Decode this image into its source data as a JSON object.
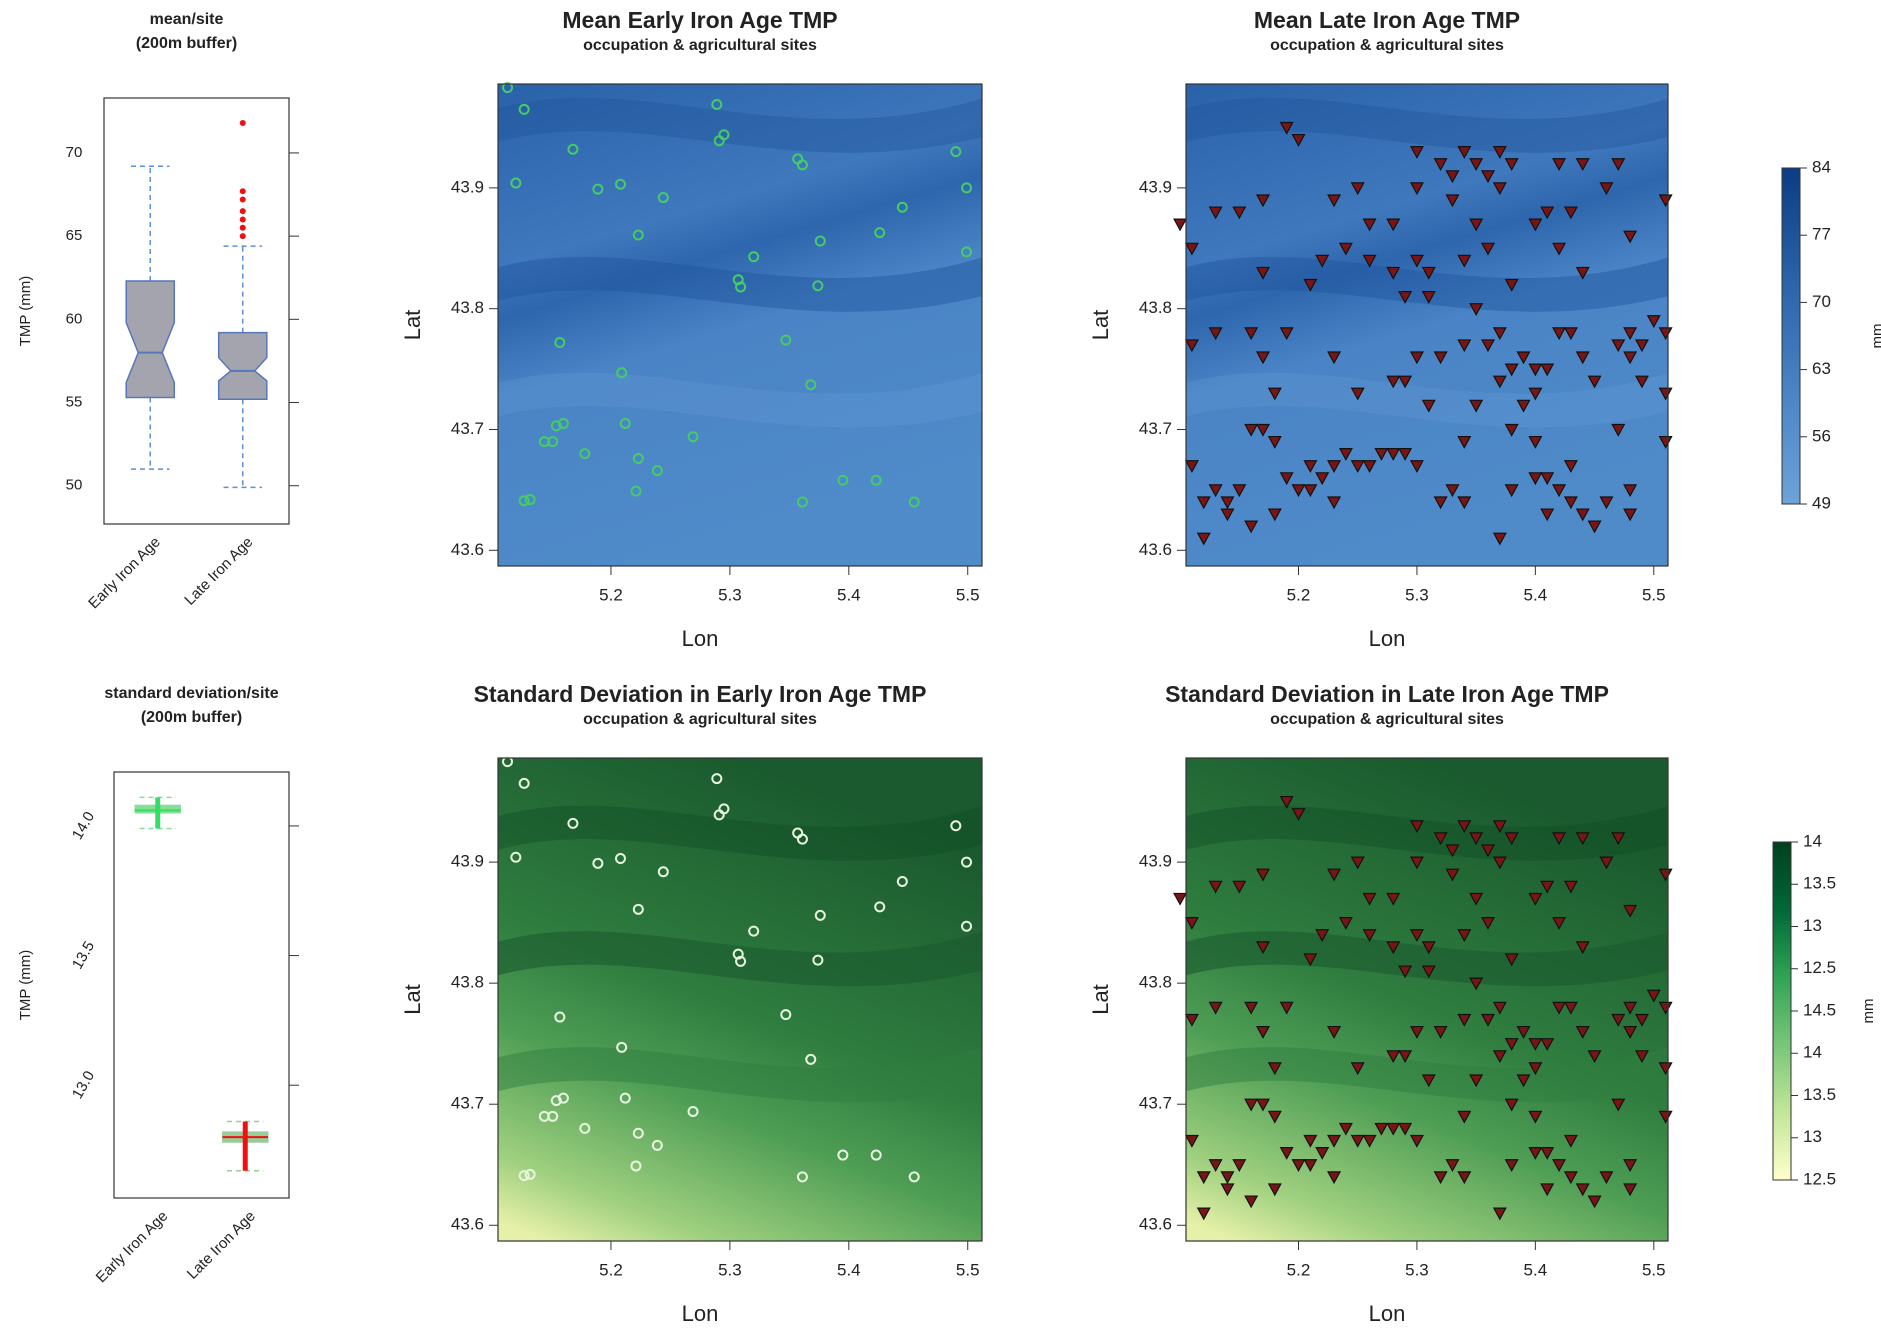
{
  "chart_data": [
    {
      "type": "boxplot",
      "title": "mean/site",
      "subtitle": "(200m buffer)",
      "ylabel": "TMP (mm)",
      "ylim": [
        47.7,
        73.3
      ],
      "yticks": [
        50,
        55,
        60,
        65,
        70
      ],
      "categories": [
        "Early Iron Age",
        "Late Iron Age"
      ],
      "boxes": [
        {
          "fill": "#a4a4ae",
          "edge": "#5577bb",
          "whisker_color": "#5b8fd6",
          "point_color": "#33dd66",
          "whislo": 51,
          "q1": 55.3,
          "med": 58,
          "q3": 62.3,
          "whishi": 69.2,
          "notch": [
            56.2,
            59.8
          ],
          "fliers": []
        },
        {
          "fill": "#a4a4ae",
          "edge": "#5577bb",
          "whisker_color": "#5b8fd6",
          "point_color": "#ee1111",
          "whislo": 49.9,
          "q1": 55.2,
          "med": 56.9,
          "q3": 59.2,
          "whishi": 64.4,
          "notch": [
            56.3,
            57.7
          ],
          "fliers": [
            71.8,
            67.7,
            67.2,
            66.5,
            66.0,
            65.5,
            65.0
          ]
        }
      ]
    },
    {
      "type": "map",
      "title": "Mean Early Iron Age TMP",
      "subtitle": "occupation & agricultural sites",
      "xlabel": "Lon",
      "ylabel": "Lat",
      "xlim": [
        5.105,
        5.512
      ],
      "ylim": [
        43.587,
        43.986
      ],
      "xticks": [
        5.2,
        5.3,
        5.4,
        5.5
      ],
      "yticks": [
        43.6,
        43.7,
        43.8,
        43.9
      ],
      "palette": "blue",
      "series": [
        {
          "marker": "circle",
          "color": "#44cc66",
          "x": [
            5.113,
            5.127,
            5.12,
            5.168,
            5.189,
            5.208,
            5.244,
            5.223,
            5.289,
            5.295,
            5.291,
            5.32,
            5.307,
            5.309,
            5.357,
            5.361,
            5.376,
            5.374,
            5.445,
            5.426,
            5.49,
            5.499,
            5.499,
            5.157,
            5.209,
            5.16,
            5.154,
            5.144,
            5.151,
            5.178,
            5.212,
            5.223,
            5.239,
            5.221,
            5.269,
            5.347,
            5.368,
            5.361,
            5.395,
            5.423,
            5.455,
            5.127,
            5.132
          ],
          "y": [
            43.983,
            43.965,
            43.904,
            43.932,
            43.899,
            43.903,
            43.892,
            43.861,
            43.969,
            43.944,
            43.939,
            43.843,
            43.824,
            43.818,
            43.924,
            43.919,
            43.856,
            43.819,
            43.884,
            43.863,
            43.93,
            43.9,
            43.847,
            43.772,
            43.747,
            43.705,
            43.703,
            43.69,
            43.69,
            43.68,
            43.705,
            43.676,
            43.666,
            43.649,
            43.694,
            43.774,
            43.737,
            43.64,
            43.658,
            43.658,
            43.64,
            43.641,
            43.642
          ]
        }
      ]
    },
    {
      "type": "map",
      "title": "Mean Late Iron Age TMP",
      "subtitle": "occupation & agricultural sites",
      "xlabel": "Lon",
      "ylabel": "Lat",
      "xlim": [
        5.105,
        5.512
      ],
      "ylim": [
        43.587,
        43.986
      ],
      "xticks": [
        5.2,
        5.3,
        5.4,
        5.5
      ],
      "yticks": [
        43.6,
        43.7,
        43.8,
        43.9
      ],
      "palette": "blue",
      "colorbar": {
        "label": "mm",
        "lim": [
          49,
          84
        ],
        "ticks": [
          49,
          56,
          63,
          70,
          77,
          84
        ],
        "colors": [
          "#6ea3d9",
          "#4a84c4",
          "#2a63a8",
          "#0b3c84"
        ]
      },
      "series": [
        {
          "marker": "triangle",
          "color": "#7a1515",
          "x": [
            5.1,
            5.11,
            5.13,
            5.17,
            5.19,
            5.2,
            5.17,
            5.15,
            5.22,
            5.21,
            5.23,
            5.24,
            5.25,
            5.26,
            5.26,
            5.28,
            5.28,
            5.3,
            5.31,
            5.3,
            5.3,
            5.32,
            5.33,
            5.34,
            5.35,
            5.36,
            5.37,
            5.37,
            5.38,
            5.33,
            5.35,
            5.36,
            5.34,
            5.38,
            5.4,
            5.41,
            5.43,
            5.42,
            5.44,
            5.42,
            5.44,
            5.47,
            5.48,
            5.51,
            5.46,
            5.29,
            5.31,
            5.35,
            5.11,
            5.13,
            5.16,
            5.17,
            5.19,
            5.23,
            5.3,
            5.32,
            5.34,
            5.36,
            5.37,
            5.38,
            5.39,
            5.4,
            5.4,
            5.41,
            5.42,
            5.43,
            5.44,
            5.45,
            5.47,
            5.48,
            5.49,
            5.5,
            5.51,
            5.48,
            5.49,
            5.51,
            5.47,
            5.51,
            5.29,
            5.31,
            5.35,
            5.37,
            5.39,
            5.18,
            5.25,
            5.28,
            5.11,
            5.12,
            5.13,
            5.14,
            5.15,
            5.16,
            5.17,
            5.18,
            5.19,
            5.2,
            5.21,
            5.22,
            5.23,
            5.24,
            5.25,
            5.26,
            5.27,
            5.28,
            5.29,
            5.3,
            5.21,
            5.14,
            5.16,
            5.18,
            5.12,
            5.23,
            5.32,
            5.33,
            5.34,
            5.34,
            5.37,
            5.38,
            5.4,
            5.41,
            5.42,
            5.43,
            5.44,
            5.45,
            5.46,
            5.48,
            5.48,
            5.41,
            5.4,
            5.43,
            5.38
          ],
          "y": [
            43.87,
            43.85,
            43.88,
            43.89,
            43.95,
            43.94,
            43.83,
            43.88,
            43.84,
            43.82,
            43.89,
            43.85,
            43.9,
            43.87,
            43.84,
            43.87,
            43.83,
            43.84,
            43.83,
            43.9,
            43.93,
            43.92,
            43.91,
            43.93,
            43.92,
            43.91,
            43.9,
            43.93,
            43.92,
            43.89,
            43.87,
            43.85,
            43.84,
            43.82,
            43.87,
            43.88,
            43.88,
            43.85,
            43.83,
            43.92,
            43.92,
            43.92,
            43.86,
            43.89,
            43.9,
            43.81,
            43.81,
            43.8,
            43.77,
            43.78,
            43.78,
            43.76,
            43.78,
            43.76,
            43.76,
            43.76,
            43.77,
            43.77,
            43.78,
            43.75,
            43.76,
            43.75,
            43.73,
            43.75,
            43.78,
            43.78,
            43.76,
            43.74,
            43.77,
            43.78,
            43.77,
            43.79,
            43.78,
            43.76,
            43.74,
            43.73,
            43.7,
            43.69,
            43.74,
            43.72,
            43.72,
            43.74,
            43.72,
            43.73,
            43.73,
            43.74,
            43.67,
            43.64,
            43.65,
            43.64,
            43.65,
            43.7,
            43.7,
            43.69,
            43.66,
            43.65,
            43.67,
            43.66,
            43.67,
            43.68,
            43.67,
            43.67,
            43.68,
            43.68,
            43.68,
            43.67,
            43.65,
            43.63,
            43.62,
            43.63,
            43.61,
            43.64,
            43.64,
            43.65,
            43.64,
            43.69,
            43.61,
            43.65,
            43.66,
            43.66,
            43.65,
            43.64,
            43.63,
            43.62,
            43.64,
            43.63,
            43.65,
            43.63,
            43.69,
            43.67,
            43.7
          ]
        }
      ]
    },
    {
      "type": "boxplot",
      "title": "standard deviation/site",
      "subtitle": "(200m buffer)",
      "ylabel": "TMP (mm)",
      "ylim": [
        12.565,
        14.208
      ],
      "yticks": [
        {
          "value": 13,
          "label": "13.0"
        },
        {
          "value": 13.5,
          "label": "13.5"
        },
        {
          "value": 14,
          "label": "14.0"
        }
      ],
      "categories": [
        "Early Iron Age",
        "Late Iron Age"
      ],
      "boxes": [
        {
          "fill": "#88dd99",
          "edge": "#88dd99",
          "whisker_color": "#88dd99",
          "point_color": "#33dd66",
          "whislo": 13.99,
          "q1": 14.05,
          "med": 14.06,
          "q3": 14.08,
          "whishi": 14.11,
          "fliers": []
        },
        {
          "fill": "#99cc99",
          "edge": "#99cc99",
          "whisker_color": "#99cc99",
          "point_color": "#ee1111",
          "whislo": 12.67,
          "q1": 12.78,
          "med": 12.8,
          "q3": 12.82,
          "whishi": 12.86,
          "fliers": []
        }
      ]
    },
    {
      "type": "map",
      "title": "Standard Deviation in Early Iron Age TMP",
      "subtitle": "occupation & agricultural sites",
      "xlabel": "Lon",
      "ylabel": "Lat",
      "xlim": [
        5.105,
        5.512
      ],
      "ylim": [
        43.587,
        43.986
      ],
      "xticks": [
        5.2,
        5.3,
        5.4,
        5.5
      ],
      "yticks": [
        43.6,
        43.7,
        43.8,
        43.9
      ],
      "palette": "green",
      "series": [
        {
          "marker": "circle",
          "color": "#e8f5e0",
          "x": [
            5.113,
            5.127,
            5.12,
            5.168,
            5.189,
            5.208,
            5.244,
            5.223,
            5.289,
            5.295,
            5.291,
            5.32,
            5.307,
            5.309,
            5.357,
            5.361,
            5.376,
            5.374,
            5.445,
            5.426,
            5.49,
            5.499,
            5.499,
            5.157,
            5.209,
            5.16,
            5.154,
            5.144,
            5.151,
            5.178,
            5.212,
            5.223,
            5.239,
            5.221,
            5.269,
            5.347,
            5.368,
            5.361,
            5.395,
            5.423,
            5.455,
            5.127,
            5.132
          ],
          "y": [
            43.983,
            43.965,
            43.904,
            43.932,
            43.899,
            43.903,
            43.892,
            43.861,
            43.969,
            43.944,
            43.939,
            43.843,
            43.824,
            43.818,
            43.924,
            43.919,
            43.856,
            43.819,
            43.884,
            43.863,
            43.93,
            43.9,
            43.847,
            43.772,
            43.747,
            43.705,
            43.703,
            43.69,
            43.69,
            43.68,
            43.705,
            43.676,
            43.666,
            43.649,
            43.694,
            43.774,
            43.737,
            43.64,
            43.658,
            43.658,
            43.64,
            43.641,
            43.642
          ]
        }
      ]
    },
    {
      "type": "map",
      "title": "Standard Deviation in Late Iron Age TMP",
      "subtitle": "occupation & agricultural sites",
      "xlabel": "Lon",
      "ylabel": "Lat",
      "xlim": [
        5.105,
        5.512
      ],
      "ylim": [
        43.587,
        43.986
      ],
      "xticks": [
        5.2,
        5.3,
        5.4,
        5.5
      ],
      "yticks": [
        43.6,
        43.7,
        43.8,
        43.9
      ],
      "palette": "green",
      "colorbar": {
        "label": "mm",
        "lim": [
          0,
          8
        ],
        "ticks": [
          {
            "value": 8,
            "label": "14"
          },
          {
            "value": 7,
            "label": "13.5"
          },
          {
            "value": 6,
            "label": "13"
          },
          {
            "value": 5,
            "label": "12.5"
          },
          {
            "value": 4,
            "label": "14.5"
          },
          {
            "value": 3,
            "label": "14"
          },
          {
            "value": 2,
            "label": "13.5"
          },
          {
            "value": 1,
            "label": "13"
          },
          {
            "value": 0,
            "label": "12.5"
          }
        ],
        "colors": [
          "#ffffcc",
          "#c2e699",
          "#78c679",
          "#31a354",
          "#006837",
          "#00401f"
        ]
      },
      "series": [
        {
          "marker": "triangle",
          "color": "#7a1515",
          "x": [
            5.1,
            5.11,
            5.13,
            5.17,
            5.19,
            5.2,
            5.17,
            5.15,
            5.22,
            5.21,
            5.23,
            5.24,
            5.25,
            5.26,
            5.26,
            5.28,
            5.28,
            5.3,
            5.31,
            5.3,
            5.3,
            5.32,
            5.33,
            5.34,
            5.35,
            5.36,
            5.37,
            5.37,
            5.38,
            5.33,
            5.35,
            5.36,
            5.34,
            5.38,
            5.4,
            5.41,
            5.43,
            5.42,
            5.44,
            5.42,
            5.44,
            5.47,
            5.48,
            5.51,
            5.46,
            5.29,
            5.31,
            5.35,
            5.11,
            5.13,
            5.16,
            5.17,
            5.19,
            5.23,
            5.3,
            5.32,
            5.34,
            5.36,
            5.37,
            5.38,
            5.39,
            5.4,
            5.4,
            5.41,
            5.42,
            5.43,
            5.44,
            5.45,
            5.47,
            5.48,
            5.49,
            5.5,
            5.51,
            5.48,
            5.49,
            5.51,
            5.47,
            5.51,
            5.29,
            5.31,
            5.35,
            5.37,
            5.39,
            5.18,
            5.25,
            5.28,
            5.11,
            5.12,
            5.13,
            5.14,
            5.15,
            5.16,
            5.17,
            5.18,
            5.19,
            5.2,
            5.21,
            5.22,
            5.23,
            5.24,
            5.25,
            5.26,
            5.27,
            5.28,
            5.29,
            5.3,
            5.21,
            5.14,
            5.16,
            5.18,
            5.12,
            5.23,
            5.32,
            5.33,
            5.34,
            5.34,
            5.37,
            5.38,
            5.4,
            5.41,
            5.42,
            5.43,
            5.44,
            5.45,
            5.46,
            5.48,
            5.48,
            5.41,
            5.4,
            5.43,
            5.38
          ],
          "y": [
            43.87,
            43.85,
            43.88,
            43.89,
            43.95,
            43.94,
            43.83,
            43.88,
            43.84,
            43.82,
            43.89,
            43.85,
            43.9,
            43.87,
            43.84,
            43.87,
            43.83,
            43.84,
            43.83,
            43.9,
            43.93,
            43.92,
            43.91,
            43.93,
            43.92,
            43.91,
            43.9,
            43.93,
            43.92,
            43.89,
            43.87,
            43.85,
            43.84,
            43.82,
            43.87,
            43.88,
            43.88,
            43.85,
            43.83,
            43.92,
            43.92,
            43.92,
            43.86,
            43.89,
            43.9,
            43.81,
            43.81,
            43.8,
            43.77,
            43.78,
            43.78,
            43.76,
            43.78,
            43.76,
            43.76,
            43.76,
            43.77,
            43.77,
            43.78,
            43.75,
            43.76,
            43.75,
            43.73,
            43.75,
            43.78,
            43.78,
            43.76,
            43.74,
            43.77,
            43.78,
            43.77,
            43.79,
            43.78,
            43.76,
            43.74,
            43.73,
            43.7,
            43.69,
            43.74,
            43.72,
            43.72,
            43.74,
            43.72,
            43.73,
            43.73,
            43.74,
            43.67,
            43.64,
            43.65,
            43.64,
            43.65,
            43.7,
            43.7,
            43.69,
            43.66,
            43.65,
            43.67,
            43.66,
            43.67,
            43.68,
            43.67,
            43.67,
            43.68,
            43.68,
            43.68,
            43.67,
            43.65,
            43.63,
            43.62,
            43.63,
            43.61,
            43.64,
            43.64,
            43.65,
            43.64,
            43.69,
            43.61,
            43.65,
            43.66,
            43.66,
            43.65,
            43.64,
            43.63,
            43.62,
            43.64,
            43.63,
            43.65,
            43.63,
            43.69,
            43.67,
            43.7
          ]
        }
      ]
    }
  ]
}
